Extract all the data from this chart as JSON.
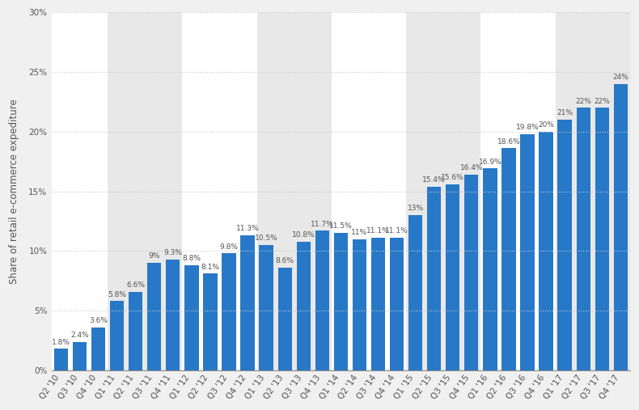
{
  "categories": [
    "Q2 '10",
    "Q3 '10",
    "Q4 '10",
    "Q1 '11",
    "Q2 '11",
    "Q3 '11",
    "Q4 '11",
    "Q1 '12",
    "Q2 '12",
    "Q3 '12",
    "Q4 '12",
    "Q1 '13",
    "Q2 '13",
    "Q3 '13",
    "Q4 '13",
    "Q1 '14",
    "Q2 '14",
    "Q3 '14",
    "Q4 '14",
    "Q1 '15",
    "Q2 '15",
    "Q3 '15",
    "Q4 '15",
    "Q1 '16",
    "Q2 '16",
    "Q3 '16",
    "Q4 '16",
    "Q1 '17",
    "Q2 '17",
    "Q3 '17",
    "Q4 '17"
  ],
  "values": [
    1.8,
    2.4,
    3.6,
    5.8,
    6.6,
    9.0,
    9.3,
    8.8,
    8.1,
    9.8,
    11.3,
    10.5,
    8.6,
    10.8,
    11.7,
    11.5,
    11.0,
    11.1,
    11.1,
    13.0,
    15.4,
    15.6,
    16.4,
    16.9,
    18.6,
    19.8,
    20.0,
    21.0,
    22.0,
    22.0,
    24.0
  ],
  "bar_color": "#2878C8",
  "bg_color": "#f0f0f0",
  "plot_bg_color": "#ffffff",
  "stripe_color": "#e8e8e8",
  "ylabel": "Share of retail e-commerce expediture",
  "ylim": [
    0,
    30
  ],
  "yticks": [
    0,
    5,
    10,
    15,
    20,
    25,
    30
  ],
  "grid_color": "#c8c8c8",
  "label_color": "#555555",
  "bar_label_fontsize": 6.5,
  "tick_fontsize": 7.5,
  "ylabel_fontsize": 8.5
}
